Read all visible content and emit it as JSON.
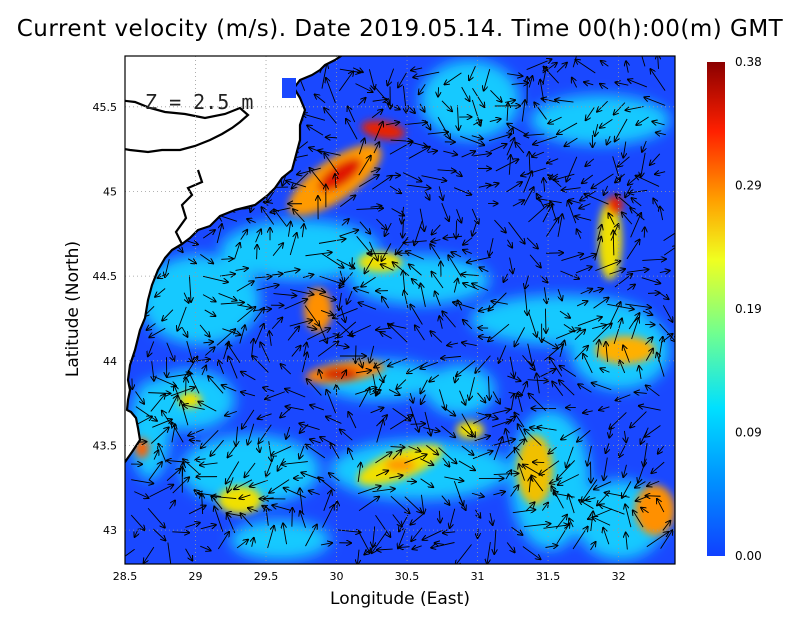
{
  "title": "Current velocity (m/s). Date 2019.05.14. Time 00(h):00(m) GMT",
  "depth_label": "Z  =  2.5  m",
  "map": {
    "xlabel": "Longitude (East)",
    "ylabel": "Latitude (North)",
    "xlim": [
      28.5,
      32.4
    ],
    "ylim": [
      42.8,
      45.8
    ],
    "xticks": [
      "28.5",
      "29",
      "29.5",
      "30",
      "30.5",
      "31",
      "31.5",
      "32"
    ],
    "yticks": [
      "43",
      "43.5",
      "44",
      "44.5",
      "45",
      "45.5"
    ],
    "grid": true
  },
  "colorbar": {
    "min": 0.0,
    "max": 0.38,
    "ticks": [
      "0.00",
      "0.09",
      "0.19",
      "0.29",
      "0.38"
    ],
    "colors": [
      "#1040ff",
      "#00a0ff",
      "#00e8ff",
      "#70ff80",
      "#ffff00",
      "#ff9000",
      "#ff2000",
      "#8a0000"
    ]
  }
}
